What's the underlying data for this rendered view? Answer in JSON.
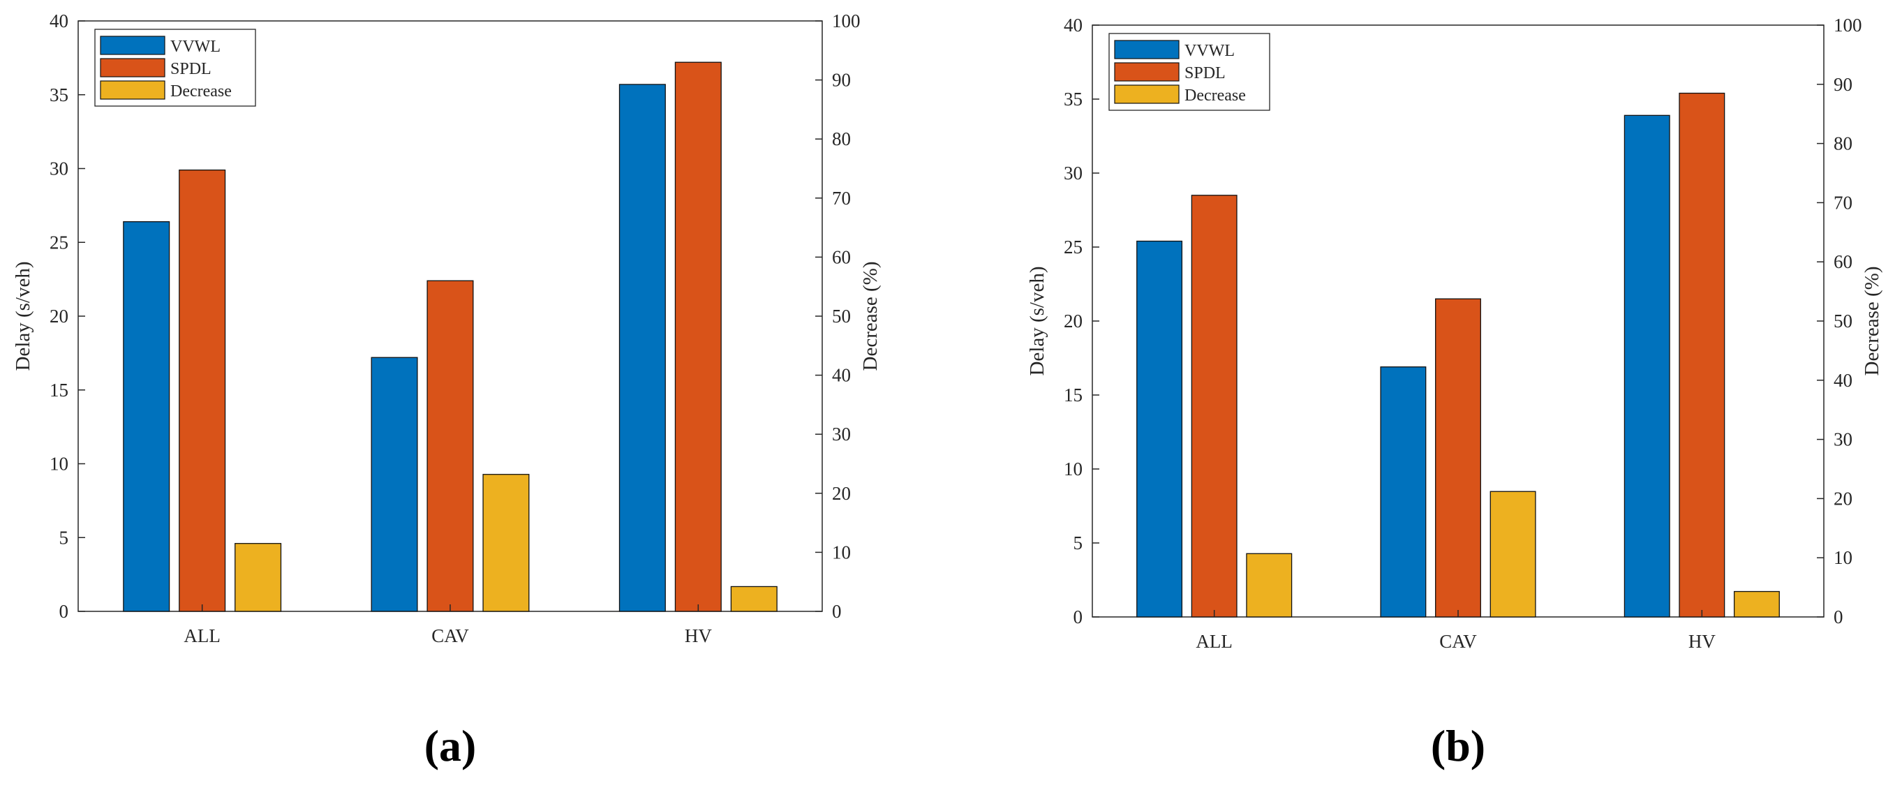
{
  "colors": {
    "vvwl": "#0072BD",
    "spdl": "#D95319",
    "decrease": "#EDB120"
  },
  "panel_labels": [
    "a",
    "b"
  ],
  "chart_data": [
    {
      "type": "bar",
      "panel": "a",
      "categories": [
        "ALL",
        "CAV",
        "HV"
      ],
      "ylabel": "Delay (s/veh)",
      "y2label": "Decrease (%)",
      "ylim": [
        0,
        40
      ],
      "y2lim": [
        0,
        100
      ],
      "yticks": [
        0,
        5,
        10,
        15,
        20,
        25,
        30,
        35,
        40
      ],
      "y2ticks": [
        0,
        10,
        20,
        30,
        40,
        50,
        60,
        70,
        80,
        90,
        100
      ],
      "legend_position": "top-left",
      "series": [
        {
          "name": "VVWL",
          "axis": "left",
          "color_key": "vvwl",
          "values": [
            26.4,
            17.2,
            35.7
          ]
        },
        {
          "name": "SPDL",
          "axis": "left",
          "color_key": "spdl",
          "values": [
            29.9,
            22.4,
            37.2
          ]
        },
        {
          "name": "Decrease",
          "axis": "right",
          "color_key": "decrease",
          "values": [
            11.5,
            23.2,
            4.2
          ]
        }
      ]
    },
    {
      "type": "bar",
      "panel": "b",
      "categories": [
        "ALL",
        "CAV",
        "HV"
      ],
      "ylabel": "Delay (s/veh)",
      "y2label": "Decrease (%)",
      "ylim": [
        0,
        40
      ],
      "y2lim": [
        0,
        100
      ],
      "yticks": [
        0,
        5,
        10,
        15,
        20,
        25,
        30,
        35,
        40
      ],
      "y2ticks": [
        0,
        10,
        20,
        30,
        40,
        50,
        60,
        70,
        80,
        90,
        100
      ],
      "legend_position": "top-left",
      "series": [
        {
          "name": "VVWL",
          "axis": "left",
          "color_key": "vvwl",
          "values": [
            25.4,
            16.9,
            33.9
          ]
        },
        {
          "name": "SPDL",
          "axis": "left",
          "color_key": "spdl",
          "values": [
            28.5,
            21.5,
            35.4
          ]
        },
        {
          "name": "Decrease",
          "axis": "right",
          "color_key": "decrease",
          "values": [
            10.7,
            21.2,
            4.3
          ]
        }
      ]
    }
  ]
}
